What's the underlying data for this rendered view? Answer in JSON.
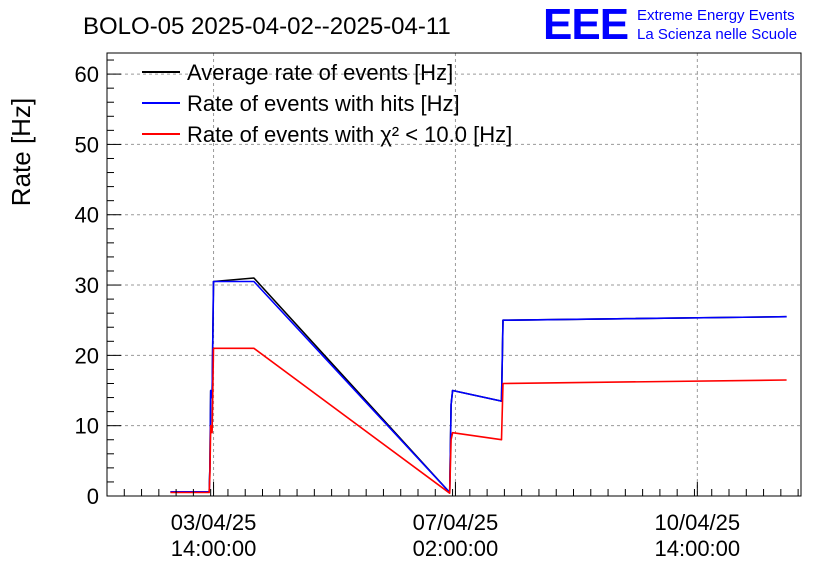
{
  "chart_data": {
    "type": "line",
    "title": "BOLO-05 2025-04-02--2025-04-11",
    "ylabel": "Rate [Hz]",
    "xlabel": "",
    "ylim": [
      0,
      63
    ],
    "yticks": [
      0,
      10,
      20,
      30,
      40,
      50,
      60
    ],
    "xticks": [
      {
        "x": "2025-04-03 14:00",
        "line1": "03/04/25",
        "line2": "14:00:00"
      },
      {
        "x": "2025-04-07 02:00",
        "line1": "07/04/25",
        "line2": "02:00:00"
      },
      {
        "x": "2025-04-10 14:00",
        "line1": "10/04/25",
        "line2": "14:00:00"
      }
    ],
    "xlim": [
      "2025-04-02 01:00",
      "2025-04-12 02:00"
    ],
    "grid": true,
    "legend_position": "top-left",
    "series": [
      {
        "name": "Average rate of events [Hz]",
        "color": "#000000",
        "points": [
          [
            "2025-04-02 23:00",
            0.6
          ],
          [
            "2025-04-03 12:30",
            0.6
          ],
          [
            "2025-04-03 12:45",
            4.0
          ],
          [
            "2025-04-03 13:00",
            15.0
          ],
          [
            "2025-04-03 13:30",
            14.0
          ],
          [
            "2025-04-03 14:00",
            30.5
          ],
          [
            "2025-04-04 04:00",
            31.0
          ],
          [
            "2025-04-07 00:00",
            0.5
          ],
          [
            "2025-04-07 00:30",
            13.0
          ],
          [
            "2025-04-07 01:00",
            15.0
          ],
          [
            "2025-04-07 18:00",
            13.5
          ],
          [
            "2025-04-07 18:30",
            25.0
          ],
          [
            "2025-04-11 21:00",
            25.5
          ]
        ]
      },
      {
        "name": "Rate of events with hits [Hz]",
        "color": "#0000ff",
        "points": [
          [
            "2025-04-02 23:00",
            0.6
          ],
          [
            "2025-04-03 12:30",
            0.6
          ],
          [
            "2025-04-03 12:45",
            4.0
          ],
          [
            "2025-04-03 13:00",
            15.0
          ],
          [
            "2025-04-03 13:30",
            14.0
          ],
          [
            "2025-04-03 14:00",
            30.5
          ],
          [
            "2025-04-04 04:00",
            30.5
          ],
          [
            "2025-04-07 00:00",
            0.5
          ],
          [
            "2025-04-07 00:30",
            13.0
          ],
          [
            "2025-04-07 01:00",
            15.0
          ],
          [
            "2025-04-07 18:00",
            13.5
          ],
          [
            "2025-04-07 18:30",
            25.0
          ],
          [
            "2025-04-11 21:00",
            25.5
          ]
        ]
      },
      {
        "name": "Rate of events with χ² < 10.0 [Hz]",
        "color": "#ff0000",
        "points": [
          [
            "2025-04-02 23:00",
            0.5
          ],
          [
            "2025-04-03 12:30",
            0.5
          ],
          [
            "2025-04-03 12:45",
            3.0
          ],
          [
            "2025-04-03 13:00",
            10.0
          ],
          [
            "2025-04-03 13:30",
            9.0
          ],
          [
            "2025-04-03 14:00",
            21.0
          ],
          [
            "2025-04-04 04:00",
            21.0
          ],
          [
            "2025-04-07 00:00",
            0.4
          ],
          [
            "2025-04-07 00:30",
            8.0
          ],
          [
            "2025-04-07 01:00",
            9.0
          ],
          [
            "2025-04-07 18:00",
            8.0
          ],
          [
            "2025-04-07 18:30",
            16.0
          ],
          [
            "2025-04-11 21:00",
            16.5
          ]
        ]
      }
    ]
  },
  "logo": {
    "mark": "EEE",
    "line1": "Extreme Energy Events",
    "line2": "La Scienza nelle Scuole",
    "color": "#0000ff"
  }
}
